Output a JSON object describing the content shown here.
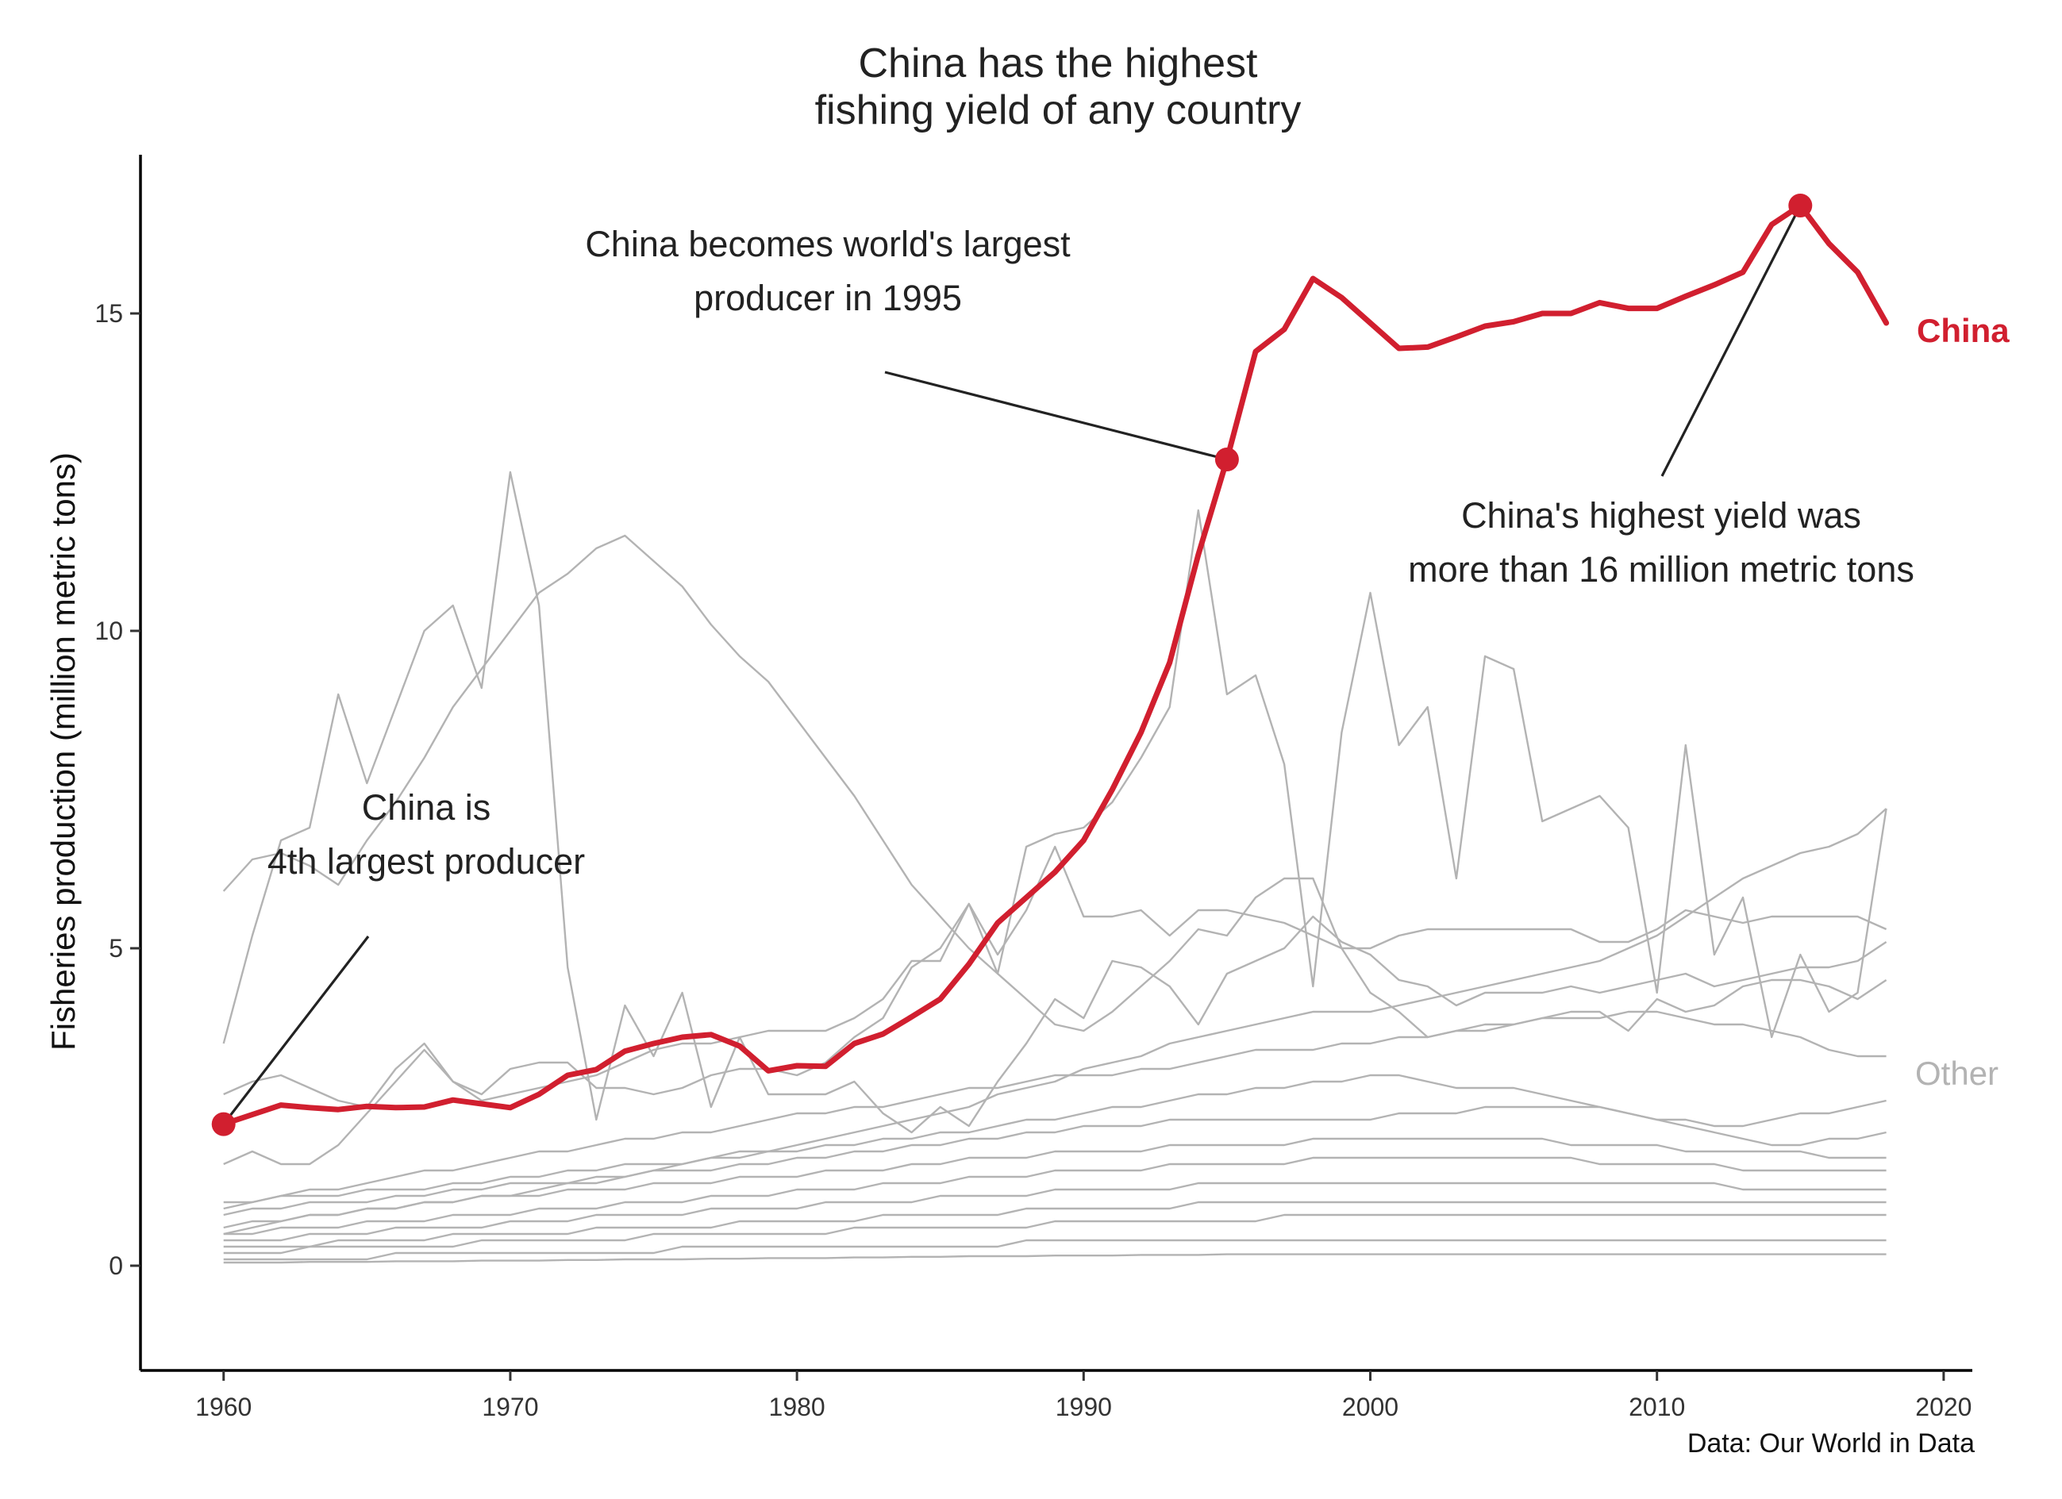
{
  "chart_data": {
    "type": "line",
    "title": [
      "China has the highest",
      "fishing yield of any country"
    ],
    "ylabel": "Fisheries production (million metric tons)",
    "xlabel": "",
    "caption": "Data: Our World in Data",
    "xlim": [
      1957.1,
      2021
    ],
    "ylim": [
      -1.65,
      17.5
    ],
    "x_ticks": [
      1960,
      1970,
      1980,
      1990,
      2000,
      2010,
      2020
    ],
    "y_ticks": [
      0,
      5,
      10,
      15
    ],
    "grid": false,
    "colors": {
      "highlight": "#d11f2f",
      "other": "#b3b3b3",
      "text": "#222222"
    },
    "series": [
      {
        "name": "China",
        "x": [
          1960,
          1961,
          1962,
          1963,
          1964,
          1965,
          1966,
          1967,
          1968,
          1969,
          1970,
          1971,
          1972,
          1973,
          1974,
          1975,
          1976,
          1977,
          1978,
          1979,
          1980,
          1981,
          1982,
          1983,
          1984,
          1985,
          1986,
          1987,
          1988,
          1989,
          1990,
          1991,
          1992,
          1993,
          1994,
          1995,
          1996,
          1997,
          1998,
          1999,
          2000,
          2001,
          2002,
          2003,
          2004,
          2005,
          2006,
          2007,
          2008,
          2009,
          2010,
          2011,
          2012,
          2013,
          2014,
          2015,
          2016,
          2017,
          2018
        ],
        "values": [
          2.23,
          2.38,
          2.53,
          2.49,
          2.46,
          2.51,
          2.49,
          2.5,
          2.61,
          2.55,
          2.49,
          2.7,
          3.0,
          3.09,
          3.38,
          3.5,
          3.6,
          3.64,
          3.46,
          3.07,
          3.15,
          3.14,
          3.5,
          3.65,
          3.92,
          4.2,
          4.75,
          5.4,
          5.8,
          6.2,
          6.7,
          7.5,
          8.4,
          9.5,
          11.2,
          12.7,
          14.4,
          14.75,
          15.55,
          15.25,
          14.85,
          14.45,
          14.47,
          14.63,
          14.8,
          14.87,
          15.0,
          15.0,
          15.17,
          15.08,
          15.08,
          15.27,
          15.45,
          15.65,
          16.4,
          16.7,
          16.1,
          15.65,
          14.85
        ]
      },
      {
        "name": "Other",
        "x": [
          1960,
          1961,
          1962,
          1963,
          1964,
          1965,
          1966,
          1967,
          1968,
          1969,
          1970,
          1971,
          1972,
          1973,
          1974,
          1975,
          1976,
          1977,
          1978,
          1979,
          1980,
          1981,
          1982,
          1983,
          1984,
          1985,
          1986,
          1987,
          1988,
          1989,
          1990,
          1991,
          1992,
          1993,
          1994,
          1995,
          1996,
          1997,
          1998,
          1999,
          2000,
          2001,
          2002,
          2003,
          2004,
          2005,
          2006,
          2007,
          2008,
          2009,
          2010,
          2011,
          2012,
          2013,
          2014,
          2015,
          2016,
          2017,
          2018
        ],
        "lines": [
          [
            5.9,
            6.4,
            6.5,
            6.3,
            6.0,
            6.7,
            7.3,
            8.0,
            8.8,
            9.4,
            10.0,
            10.6,
            10.9,
            11.3,
            11.5,
            11.1,
            10.7,
            10.1,
            9.6,
            9.2,
            8.6,
            8.0,
            7.4,
            6.7,
            6.0,
            5.5,
            5.0,
            4.6,
            4.2,
            3.8,
            3.7,
            4.0,
            4.4,
            4.8,
            5.3,
            5.2,
            5.8,
            6.1,
            6.1,
            5.0,
            4.3,
            4.0,
            3.6,
            3.7,
            3.7,
            3.8,
            3.9,
            4.0,
            4.0,
            3.7,
            4.2,
            4.0,
            4.1,
            4.4,
            4.5,
            4.5,
            4.4,
            4.2,
            4.5
          ],
          [
            3.5,
            5.2,
            6.7,
            6.9,
            9.0,
            7.6,
            8.8,
            10.0,
            10.4,
            9.1,
            12.5,
            10.4,
            4.7,
            2.3,
            4.1,
            3.3,
            4.3,
            2.5,
            3.6,
            2.7,
            2.7,
            2.7,
            2.9,
            2.4,
            2.1,
            2.5,
            2.2,
            2.9,
            3.5,
            4.2,
            3.9,
            4.8,
            4.7,
            4.4,
            3.8,
            4.6,
            4.8,
            5.0,
            5.5,
            5.1,
            4.9,
            4.5,
            4.4,
            4.1,
            4.3,
            4.3,
            4.3,
            4.4,
            4.3,
            4.4,
            4.5,
            4.6,
            4.4,
            4.5,
            4.6,
            4.7,
            4.7,
            4.8,
            5.1
          ],
          [
            2.7,
            2.9,
            3.0,
            2.8,
            2.6,
            2.5,
            3.1,
            3.5,
            2.9,
            2.7,
            3.1,
            3.2,
            3.2,
            2.8,
            2.8,
            2.7,
            2.8,
            3.0,
            3.1,
            3.1,
            3.0,
            3.2,
            3.6,
            3.9,
            4.7,
            5.0,
            5.7,
            4.6,
            6.6,
            6.8,
            6.9,
            7.3,
            8.0,
            8.8,
            11.9,
            9.0,
            9.3,
            7.9,
            4.4,
            8.4,
            10.6,
            8.2,
            8.8,
            6.1,
            9.6,
            9.4,
            7.0,
            7.2,
            7.4,
            6.9,
            4.3,
            8.2,
            4.9,
            5.8,
            3.6,
            4.9,
            4.0,
            4.3,
            7.2
          ],
          [
            1.6,
            1.8,
            1.6,
            1.6,
            1.9,
            2.4,
            2.9,
            3.4,
            2.9,
            2.6,
            2.7,
            2.8,
            2.9,
            3.0,
            3.2,
            3.4,
            3.5,
            3.5,
            3.6,
            3.7,
            3.7,
            3.7,
            3.9,
            4.2,
            4.8,
            4.8,
            5.7,
            4.9,
            5.6,
            6.6,
            5.5,
            5.5,
            5.6,
            5.2,
            5.6,
            5.6,
            5.5,
            5.4,
            5.2,
            5.0,
            5.0,
            5.2,
            5.3,
            5.3,
            5.3,
            5.3,
            5.3,
            5.3,
            5.1,
            5.1,
            5.3,
            5.6,
            5.5,
            5.4,
            5.5,
            5.5,
            5.5,
            5.5,
            5.3
          ],
          [
            0.5,
            0.6,
            0.7,
            0.8,
            0.8,
            0.9,
            0.9,
            1.0,
            1.0,
            1.1,
            1.1,
            1.2,
            1.3,
            1.3,
            1.4,
            1.5,
            1.6,
            1.7,
            1.8,
            1.8,
            1.9,
            2.0,
            2.1,
            2.2,
            2.3,
            2.4,
            2.5,
            2.7,
            2.8,
            2.9,
            3.1,
            3.2,
            3.3,
            3.5,
            3.6,
            3.7,
            3.8,
            3.9,
            4.0,
            4.0,
            4.0,
            4.1,
            4.2,
            4.3,
            4.4,
            4.5,
            4.6,
            4.7,
            4.8,
            5.0,
            5.2,
            5.5,
            5.8,
            6.1,
            6.3,
            6.5,
            6.6,
            6.8,
            7.2
          ],
          [
            0.9,
            1.0,
            1.1,
            1.2,
            1.2,
            1.3,
            1.4,
            1.5,
            1.5,
            1.6,
            1.7,
            1.8,
            1.8,
            1.9,
            2.0,
            2.0,
            2.1,
            2.1,
            2.2,
            2.3,
            2.4,
            2.4,
            2.5,
            2.5,
            2.6,
            2.7,
            2.8,
            2.8,
            2.9,
            3.0,
            3.0,
            3.0,
            3.1,
            3.1,
            3.2,
            3.3,
            3.4,
            3.4,
            3.4,
            3.5,
            3.5,
            3.6,
            3.6,
            3.7,
            3.8,
            3.8,
            3.9,
            3.9,
            3.9,
            4.0,
            4.0,
            3.9,
            3.8,
            3.8,
            3.7,
            3.6,
            3.4,
            3.3,
            3.3
          ],
          [
            1.0,
            1.0,
            1.1,
            1.1,
            1.1,
            1.2,
            1.2,
            1.2,
            1.3,
            1.3,
            1.4,
            1.4,
            1.5,
            1.5,
            1.6,
            1.6,
            1.6,
            1.7,
            1.7,
            1.8,
            1.8,
            1.9,
            1.9,
            2.0,
            2.0,
            2.1,
            2.1,
            2.2,
            2.3,
            2.3,
            2.4,
            2.5,
            2.5,
            2.6,
            2.7,
            2.7,
            2.8,
            2.8,
            2.9,
            2.9,
            3.0,
            3.0,
            2.9,
            2.8,
            2.8,
            2.8,
            2.7,
            2.6,
            2.5,
            2.4,
            2.3,
            2.3,
            2.2,
            2.2,
            2.3,
            2.4,
            2.4,
            2.5,
            2.6
          ],
          [
            0.8,
            0.9,
            0.9,
            1.0,
            1.0,
            1.0,
            1.1,
            1.1,
            1.2,
            1.2,
            1.3,
            1.3,
            1.3,
            1.4,
            1.4,
            1.5,
            1.5,
            1.5,
            1.6,
            1.6,
            1.7,
            1.7,
            1.8,
            1.8,
            1.9,
            1.9,
            2.0,
            2.0,
            2.1,
            2.1,
            2.2,
            2.2,
            2.2,
            2.3,
            2.3,
            2.3,
            2.3,
            2.3,
            2.3,
            2.3,
            2.3,
            2.4,
            2.4,
            2.4,
            2.5,
            2.5,
            2.5,
            2.5,
            2.5,
            2.4,
            2.3,
            2.2,
            2.1,
            2.0,
            1.9,
            1.9,
            2.0,
            2.0,
            2.1
          ],
          [
            0.6,
            0.7,
            0.7,
            0.8,
            0.8,
            0.9,
            0.9,
            1.0,
            1.0,
            1.1,
            1.1,
            1.1,
            1.2,
            1.2,
            1.2,
            1.3,
            1.3,
            1.3,
            1.4,
            1.4,
            1.4,
            1.5,
            1.5,
            1.5,
            1.6,
            1.6,
            1.7,
            1.7,
            1.7,
            1.8,
            1.8,
            1.8,
            1.8,
            1.9,
            1.9,
            1.9,
            1.9,
            1.9,
            2.0,
            2.0,
            2.0,
            2.0,
            2.0,
            2.0,
            2.0,
            2.0,
            2.0,
            1.9,
            1.9,
            1.9,
            1.9,
            1.8,
            1.8,
            1.8,
            1.8,
            1.8,
            1.7,
            1.7,
            1.7
          ],
          [
            0.5,
            0.5,
            0.6,
            0.6,
            0.6,
            0.7,
            0.7,
            0.7,
            0.8,
            0.8,
            0.8,
            0.9,
            0.9,
            0.9,
            1.0,
            1.0,
            1.0,
            1.1,
            1.1,
            1.1,
            1.2,
            1.2,
            1.2,
            1.3,
            1.3,
            1.3,
            1.4,
            1.4,
            1.4,
            1.5,
            1.5,
            1.5,
            1.5,
            1.6,
            1.6,
            1.6,
            1.6,
            1.6,
            1.7,
            1.7,
            1.7,
            1.7,
            1.7,
            1.7,
            1.7,
            1.7,
            1.7,
            1.7,
            1.6,
            1.6,
            1.6,
            1.6,
            1.6,
            1.5,
            1.5,
            1.5,
            1.5,
            1.5,
            1.5
          ],
          [
            0.4,
            0.4,
            0.4,
            0.5,
            0.5,
            0.5,
            0.6,
            0.6,
            0.6,
            0.6,
            0.7,
            0.7,
            0.7,
            0.8,
            0.8,
            0.8,
            0.8,
            0.9,
            0.9,
            0.9,
            0.9,
            1.0,
            1.0,
            1.0,
            1.0,
            1.1,
            1.1,
            1.1,
            1.1,
            1.2,
            1.2,
            1.2,
            1.2,
            1.2,
            1.3,
            1.3,
            1.3,
            1.3,
            1.3,
            1.3,
            1.3,
            1.3,
            1.3,
            1.3,
            1.3,
            1.3,
            1.3,
            1.3,
            1.3,
            1.3,
            1.3,
            1.3,
            1.3,
            1.2,
            1.2,
            1.2,
            1.2,
            1.2,
            1.2
          ],
          [
            0.3,
            0.3,
            0.3,
            0.3,
            0.4,
            0.4,
            0.4,
            0.4,
            0.5,
            0.5,
            0.5,
            0.5,
            0.5,
            0.6,
            0.6,
            0.6,
            0.6,
            0.6,
            0.7,
            0.7,
            0.7,
            0.7,
            0.7,
            0.8,
            0.8,
            0.8,
            0.8,
            0.8,
            0.9,
            0.9,
            0.9,
            0.9,
            0.9,
            0.9,
            1.0,
            1.0,
            1.0,
            1.0,
            1.0,
            1.0,
            1.0,
            1.0,
            1.0,
            1.0,
            1.0,
            1.0,
            1.0,
            1.0,
            1.0,
            1.0,
            1.0,
            1.0,
            1.0,
            1.0,
            1.0,
            1.0,
            1.0,
            1.0,
            1.0
          ],
          [
            0.2,
            0.2,
            0.2,
            0.3,
            0.3,
            0.3,
            0.3,
            0.3,
            0.3,
            0.4,
            0.4,
            0.4,
            0.4,
            0.4,
            0.4,
            0.5,
            0.5,
            0.5,
            0.5,
            0.5,
            0.5,
            0.5,
            0.6,
            0.6,
            0.6,
            0.6,
            0.6,
            0.6,
            0.6,
            0.7,
            0.7,
            0.7,
            0.7,
            0.7,
            0.7,
            0.7,
            0.7,
            0.8,
            0.8,
            0.8,
            0.8,
            0.8,
            0.8,
            0.8,
            0.8,
            0.8,
            0.8,
            0.8,
            0.8,
            0.8,
            0.8,
            0.8,
            0.8,
            0.8,
            0.8,
            0.8,
            0.8,
            0.8,
            0.8
          ],
          [
            0.1,
            0.1,
            0.1,
            0.1,
            0.1,
            0.1,
            0.2,
            0.2,
            0.2,
            0.2,
            0.2,
            0.2,
            0.2,
            0.2,
            0.2,
            0.2,
            0.3,
            0.3,
            0.3,
            0.3,
            0.3,
            0.3,
            0.3,
            0.3,
            0.3,
            0.3,
            0.3,
            0.3,
            0.4,
            0.4,
            0.4,
            0.4,
            0.4,
            0.4,
            0.4,
            0.4,
            0.4,
            0.4,
            0.4,
            0.4,
            0.4,
            0.4,
            0.4,
            0.4,
            0.4,
            0.4,
            0.4,
            0.4,
            0.4,
            0.4,
            0.4,
            0.4,
            0.4,
            0.4,
            0.4,
            0.4,
            0.4,
            0.4,
            0.4
          ],
          [
            0.05,
            0.05,
            0.05,
            0.06,
            0.06,
            0.06,
            0.07,
            0.07,
            0.07,
            0.08,
            0.08,
            0.08,
            0.09,
            0.09,
            0.1,
            0.1,
            0.1,
            0.11,
            0.11,
            0.12,
            0.12,
            0.12,
            0.13,
            0.13,
            0.14,
            0.14,
            0.15,
            0.15,
            0.15,
            0.16,
            0.16,
            0.16,
            0.17,
            0.17,
            0.17,
            0.18,
            0.18,
            0.18,
            0.18,
            0.18,
            0.18,
            0.18,
            0.18,
            0.18,
            0.18,
            0.18,
            0.18,
            0.18,
            0.18,
            0.18,
            0.18,
            0.18,
            0.18,
            0.18,
            0.18,
            0.18,
            0.18,
            0.18,
            0.18
          ]
        ]
      }
    ],
    "highlight_points": [
      {
        "x": 1960,
        "y": 2.23
      },
      {
        "x": 1995,
        "y": 12.7
      },
      {
        "x": 2015,
        "y": 16.7
      }
    ],
    "series_labels": {
      "china": "China",
      "other": "Other"
    },
    "annotations": [
      {
        "lines": [
          "China is",
          "4th largest producer"
        ],
        "target_x": 1960,
        "target_y": 2.23
      },
      {
        "lines": [
          "China becomes world's largest",
          "producer in 1995"
        ],
        "target_x": 1995,
        "target_y": 12.7
      },
      {
        "lines": [
          "China's highest yield was",
          "more than 16 million metric tons"
        ],
        "target_x": 2015,
        "target_y": 16.7
      }
    ]
  }
}
